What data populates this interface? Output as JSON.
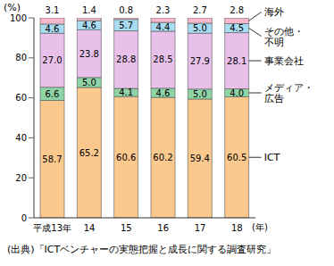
{
  "chart_data": {
    "type": "bar",
    "stacked": true,
    "data_labels": true,
    "grid": false,
    "y_label": "(%)",
    "x_label": "(年)",
    "annotations": [
      "(出典)「ICTベンチャーの実態把握と成長に関する調査研究」"
    ],
    "categories": [
      "平成13年",
      "14",
      "15",
      "16",
      "17",
      "18"
    ],
    "ylim": [
      0,
      100
    ],
    "yticks": [
      0,
      20,
      40,
      60,
      80,
      100
    ],
    "series": [
      {
        "name": "ICT",
        "color": "#fbc98e",
        "values": [
          58.7,
          65.2,
          60.6,
          60.2,
          59.4,
          60.5
        ],
        "value_labels": [
          "58.7",
          "65.2",
          "60.6",
          "60.2",
          "59.4",
          "60.5"
        ]
      },
      {
        "name": "メディア・広告",
        "color": "#8fd4a6",
        "values": [
          6.6,
          5.0,
          4.1,
          4.6,
          5.0,
          4.0
        ],
        "value_labels": [
          "6.6",
          "5.0",
          "4.1",
          "4.6",
          "5.0",
          "4.0"
        ]
      },
      {
        "name": "事業会社",
        "color": "#e8c0ea",
        "values": [
          27.0,
          23.8,
          28.8,
          28.5,
          27.9,
          28.1
        ],
        "value_labels": [
          "27.0",
          "23.8",
          "28.8",
          "28.5",
          "27.9",
          "28.1"
        ]
      },
      {
        "name": "その他・不明",
        "color": "#a9dbf2",
        "values": [
          4.6,
          4.6,
          5.7,
          4.4,
          5.0,
          4.5
        ],
        "value_labels": [
          "4.6",
          "4.6",
          "5.7",
          "4.4",
          "5.0",
          "4.5"
        ]
      },
      {
        "name": "海外",
        "color": "#f7b8cb",
        "values": [
          3.1,
          1.4,
          0.8,
          2.3,
          2.7,
          2.8
        ],
        "value_labels": [
          "3.1",
          "1.4",
          "0.8",
          "2.3",
          "2.7",
          "2.8"
        ]
      }
    ]
  }
}
